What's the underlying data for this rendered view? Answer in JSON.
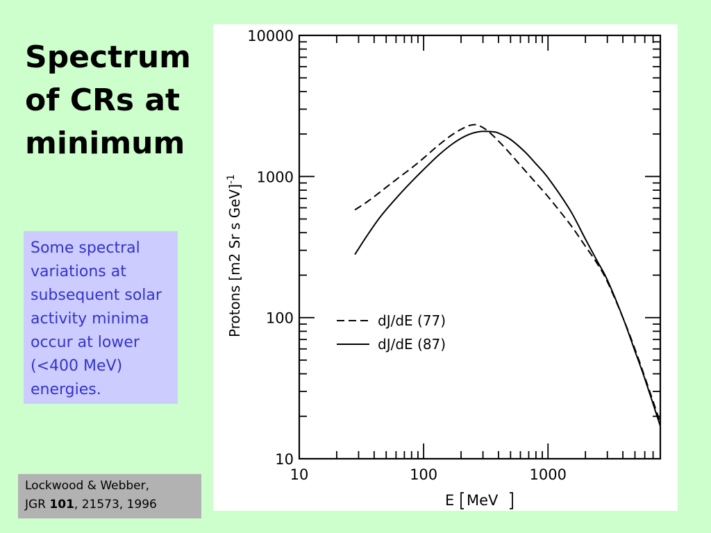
{
  "slide": {
    "title": "Spectrum of CRs at minimum",
    "note": "Some spectral variations at subsequent solar activity minima occur at lower (<400 MeV) energies.",
    "reference": {
      "authors": "Lockwood & Webber,",
      "journal": "JGR",
      "volume": "101",
      "pages_year": ", 21573, 1996"
    }
  },
  "colors": {
    "background": "#ccffcc",
    "note_box": "#ccccff",
    "note_text": "#3333cc",
    "reference_box": "#b2b2b2"
  },
  "chart_data": {
    "type": "line",
    "xscale": "log",
    "yscale": "log",
    "xlim": [
      10,
      8000
    ],
    "ylim": [
      10,
      10000
    ],
    "xlabel_main": "E",
    "xlabel_unit": "MeV",
    "ylabel_main": "Protons ",
    "ylabel_unit": "m2 Sr s GeV",
    "ylabel_exponent": "-1",
    "x_ticks": [
      {
        "value": 10,
        "label": "10"
      },
      {
        "value": 100,
        "label": "100"
      },
      {
        "value": 1000,
        "label": "1000"
      }
    ],
    "y_ticks": [
      {
        "value": 10,
        "label": "10"
      },
      {
        "value": 100,
        "label": "100"
      },
      {
        "value": 1000,
        "label": "1000"
      },
      {
        "value": 10000,
        "label": "10000"
      }
    ],
    "series": [
      {
        "name": "dJ/dE (77)",
        "style": "dashed",
        "x": [
          28,
          35,
          45,
          60,
          80,
          100,
          130,
          170,
          220,
          260,
          300,
          350,
          450,
          600,
          800,
          1000,
          1500,
          2000,
          2500,
          3000,
          4000,
          5000,
          6000,
          8000
        ],
        "y": [
          580,
          660,
          780,
          950,
          1150,
          1350,
          1650,
          1980,
          2250,
          2330,
          2220,
          2000,
          1600,
          1200,
          900,
          720,
          460,
          320,
          240,
          180,
          100,
          60,
          38,
          18
        ]
      },
      {
        "name": "dJ/dE (87)",
        "style": "solid",
        "x": [
          28,
          35,
          45,
          60,
          80,
          100,
          130,
          170,
          220,
          280,
          350,
          400,
          500,
          650,
          800,
          1000,
          1500,
          2000,
          2500,
          3000,
          4000,
          5000,
          6000,
          8000
        ],
        "y": [
          280,
          380,
          520,
          700,
          920,
          1120,
          1400,
          1700,
          1950,
          2080,
          2080,
          2030,
          1830,
          1500,
          1230,
          980,
          580,
          360,
          250,
          185,
          100,
          58,
          37,
          17
        ]
      }
    ],
    "legend_position": "center-left"
  }
}
